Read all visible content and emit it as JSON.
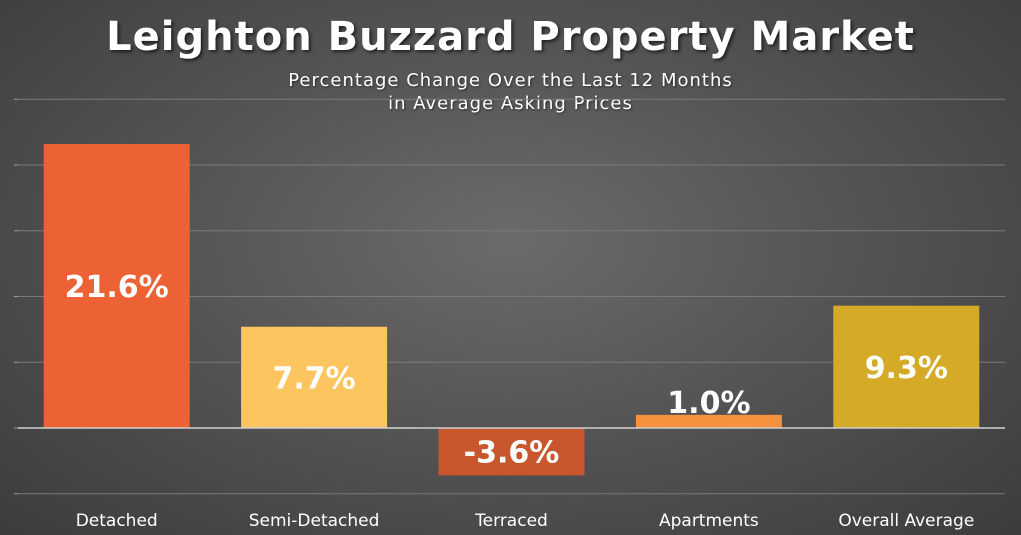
{
  "chart_data": {
    "type": "bar",
    "title": "Leighton Buzzard Property Market",
    "subtitle_lines": [
      "Percentage Change Over the Last 12 Months",
      "in Average Asking Prices"
    ],
    "categories": [
      "Detached",
      "Semi-Detached",
      "Terraced",
      "Apartments",
      "Overall Average"
    ],
    "values": [
      21.6,
      7.7,
      -3.6,
      1.0,
      9.3
    ],
    "data_labels": [
      "21.6%",
      "7.7%",
      "-3.6%",
      "1.0%",
      "9.3%"
    ],
    "bar_colors": [
      "#ec6234",
      "#fdc55f",
      "#c9572e",
      "#f7913d",
      "#d5aa27"
    ],
    "ylim": [
      -5,
      25
    ],
    "grid": true,
    "xlabel": "",
    "ylabel": ""
  }
}
